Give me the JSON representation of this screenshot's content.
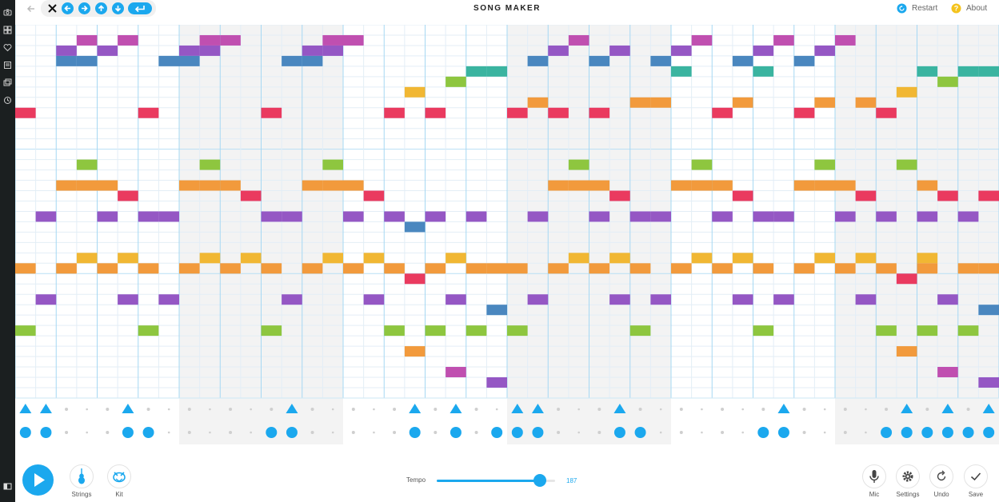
{
  "header": {
    "title": "SONG MAKER",
    "restart_label": "Restart",
    "about_label": "About"
  },
  "toolbar": {
    "icons": [
      "close-icon",
      "arrow-left-icon",
      "arrow-right-icon",
      "arrow-up-icon",
      "arrow-down-icon",
      "enter-icon"
    ]
  },
  "sidebar": {
    "icons": [
      "camera-icon",
      "grid-icon",
      "heart-icon",
      "notes-icon",
      "gallery-icon",
      "history-icon",
      "panel-icon"
    ]
  },
  "footer": {
    "instrument_label": "Strings",
    "kit_label": "Kit",
    "tempo_label": "Tempo",
    "tempo_value": "187",
    "tempo_fraction": 0.87,
    "mic_label": "Mic",
    "settings_label": "Settings",
    "undo_label": "Undo",
    "save_label": "Save"
  },
  "scrollbar": {
    "start_fraction": 0.754,
    "end_fraction": 1.0
  },
  "colors": {
    "accent": "#1ba8ee",
    "row_colors": [
      "#ea3a5f",
      "#c04fb0",
      "#9557c4",
      "#4a87bf",
      "#3ab4a0",
      "#8ec63f",
      "#f1b733",
      "#f29a3c"
    ]
  },
  "melody": {
    "columns": 48,
    "rows": 36,
    "notes": [
      [
        0,
        8
      ],
      [
        3,
        1
      ],
      [
        2,
        2
      ],
      [
        2,
        3
      ],
      [
        5,
        1
      ],
      [
        4,
        2
      ],
      [
        3,
        3
      ],
      [
        6,
        8
      ],
      [
        9,
        1
      ],
      [
        8,
        2
      ],
      [
        7,
        3
      ],
      [
        10,
        1
      ],
      [
        9,
        2
      ],
      [
        8,
        3
      ],
      [
        12,
        8
      ],
      [
        15,
        1
      ],
      [
        14,
        2
      ],
      [
        13,
        3
      ],
      [
        16,
        1
      ],
      [
        15,
        2
      ],
      [
        14,
        3
      ],
      [
        18,
        8
      ],
      [
        19,
        6
      ],
      [
        20,
        8
      ],
      [
        21,
        5
      ],
      [
        22,
        4
      ],
      [
        23,
        4
      ],
      [
        24,
        8
      ],
      [
        25,
        7
      ],
      [
        26,
        8
      ],
      [
        27,
        1
      ],
      [
        26,
        2
      ],
      [
        25,
        3
      ],
      [
        28,
        8
      ],
      [
        29,
        2
      ],
      [
        28,
        3
      ],
      [
        30,
        7
      ],
      [
        31,
        7
      ],
      [
        32,
        4
      ],
      [
        33,
        1
      ],
      [
        32,
        2
      ],
      [
        31,
        3
      ],
      [
        34,
        8
      ],
      [
        35,
        7
      ],
      [
        36,
        4
      ],
      [
        37,
        1
      ],
      [
        36,
        2
      ],
      [
        35,
        3
      ],
      [
        38,
        8
      ],
      [
        39,
        7
      ],
      [
        40,
        1
      ],
      [
        39,
        2
      ],
      [
        38,
        3
      ],
      [
        41,
        7
      ],
      [
        42,
        8
      ],
      [
        43,
        6
      ],
      [
        44,
        4
      ],
      [
        45,
        5
      ],
      [
        46,
        4
      ],
      [
        47,
        4
      ],
      [
        3,
        13
      ],
      [
        2,
        15
      ],
      [
        3,
        15
      ],
      [
        4,
        15
      ],
      [
        5,
        16
      ],
      [
        1,
        18
      ],
      [
        4,
        18
      ],
      [
        6,
        18
      ],
      [
        7,
        18
      ],
      [
        9,
        13
      ],
      [
        8,
        15
      ],
      [
        9,
        15
      ],
      [
        10,
        15
      ],
      [
        11,
        16
      ],
      [
        12,
        18
      ],
      [
        13,
        18
      ],
      [
        15,
        13
      ],
      [
        14,
        15
      ],
      [
        15,
        15
      ],
      [
        16,
        15
      ],
      [
        17,
        16
      ],
      [
        16,
        18
      ],
      [
        18,
        18
      ],
      [
        19,
        19
      ],
      [
        20,
        18
      ],
      [
        22,
        18
      ],
      [
        25,
        18
      ],
      [
        27,
        13
      ],
      [
        26,
        15
      ],
      [
        27,
        15
      ],
      [
        28,
        15
      ],
      [
        29,
        16
      ],
      [
        28,
        18
      ],
      [
        30,
        18
      ],
      [
        31,
        18
      ],
      [
        33,
        13
      ],
      [
        32,
        15
      ],
      [
        33,
        15
      ],
      [
        34,
        15
      ],
      [
        35,
        16
      ],
      [
        34,
        18
      ],
      [
        36,
        18
      ],
      [
        37,
        18
      ],
      [
        39,
        13
      ],
      [
        38,
        15
      ],
      [
        39,
        15
      ],
      [
        40,
        15
      ],
      [
        41,
        16
      ],
      [
        40,
        18
      ],
      [
        42,
        18
      ],
      [
        43,
        13
      ],
      [
        44,
        15
      ],
      [
        45,
        16
      ],
      [
        44,
        18
      ],
      [
        46,
        18
      ],
      [
        47,
        16
      ],
      [
        3,
        22
      ],
      [
        5,
        22
      ],
      [
        9,
        22
      ],
      [
        11,
        22
      ],
      [
        15,
        22
      ],
      [
        17,
        22
      ],
      [
        21,
        22
      ],
      [
        27,
        22
      ],
      [
        29,
        22
      ],
      [
        33,
        22
      ],
      [
        35,
        22
      ],
      [
        39,
        22
      ],
      [
        41,
        22
      ],
      [
        44,
        22
      ],
      [
        0,
        23
      ],
      [
        2,
        23
      ],
      [
        4,
        23
      ],
      [
        6,
        23
      ],
      [
        8,
        23
      ],
      [
        10,
        23
      ],
      [
        12,
        23
      ],
      [
        14,
        23
      ],
      [
        16,
        23
      ],
      [
        18,
        23
      ],
      [
        20,
        23
      ],
      [
        22,
        23
      ],
      [
        23,
        23
      ],
      [
        24,
        23
      ],
      [
        26,
        23
      ],
      [
        28,
        23
      ],
      [
        30,
        23
      ],
      [
        32,
        23
      ],
      [
        34,
        23
      ],
      [
        36,
        23
      ],
      [
        38,
        23
      ],
      [
        40,
        23
      ],
      [
        42,
        23
      ],
      [
        44,
        23
      ],
      [
        46,
        23
      ],
      [
        47,
        23
      ],
      [
        19,
        24
      ],
      [
        43,
        24
      ],
      [
        1,
        26
      ],
      [
        5,
        26
      ],
      [
        7,
        26
      ],
      [
        13,
        26
      ],
      [
        17,
        26
      ],
      [
        21,
        26
      ],
      [
        25,
        26
      ],
      [
        29,
        26
      ],
      [
        31,
        26
      ],
      [
        35,
        26
      ],
      [
        37,
        26
      ],
      [
        41,
        26
      ],
      [
        45,
        26
      ],
      [
        23,
        27
      ],
      [
        47,
        27
      ],
      [
        0,
        29
      ],
      [
        6,
        29
      ],
      [
        12,
        29
      ],
      [
        18,
        29
      ],
      [
        20,
        29
      ],
      [
        22,
        29
      ],
      [
        24,
        29
      ],
      [
        30,
        29
      ],
      [
        36,
        29
      ],
      [
        42,
        29
      ],
      [
        44,
        29
      ],
      [
        46,
        29
      ],
      [
        19,
        31
      ],
      [
        43,
        31
      ],
      [
        21,
        33
      ],
      [
        45,
        33
      ],
      [
        23,
        34
      ],
      [
        47,
        34
      ]
    ]
  },
  "rhythm": {
    "columns": 48,
    "snare": [
      0,
      1,
      5,
      13,
      19,
      21,
      24,
      25,
      29,
      37,
      43,
      45,
      47
    ],
    "kick": [
      0,
      1,
      5,
      6,
      12,
      13,
      19,
      21,
      23,
      24,
      25,
      29,
      30,
      36,
      37,
      42,
      43,
      44,
      45,
      46,
      47
    ]
  }
}
